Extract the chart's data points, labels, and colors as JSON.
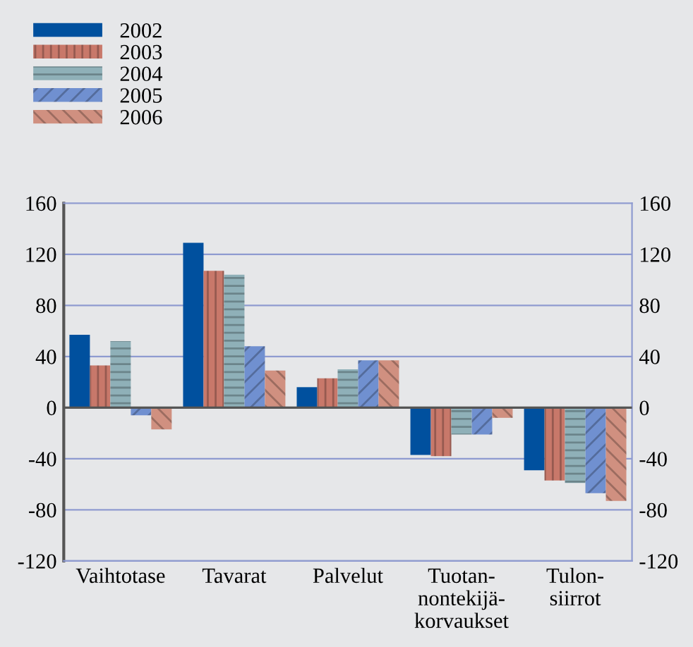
{
  "chart_data": {
    "type": "bar",
    "categories": [
      "Vaihtotase",
      "Tavarat",
      "Palvelut",
      "Tuotan-\nnontekijä-\nkorvaukset",
      "Tulon-\nsiirrot"
    ],
    "series": [
      {
        "name": "2002",
        "color": "#00509e",
        "values": [
          57,
          129,
          16,
          -37,
          -49
        ]
      },
      {
        "name": "2003",
        "color": "#c8786a",
        "values": [
          33,
          107,
          23,
          -38,
          -57
        ]
      },
      {
        "name": "2004",
        "color": "#8fb0b8",
        "values": [
          52,
          104,
          30,
          -21,
          -59
        ]
      },
      {
        "name": "2005",
        "color": "#7090d0",
        "values": [
          -6,
          48,
          37,
          -21,
          -67
        ]
      },
      {
        "name": "2006",
        "color": "#d09080",
        "values": [
          -17,
          29,
          37,
          -8,
          -73
        ]
      }
    ],
    "ylim": [
      -120,
      160
    ],
    "yticks": [
      -120,
      -80,
      -40,
      0,
      40,
      80,
      120,
      160
    ],
    "y2lim": [
      -120,
      160
    ],
    "y2ticks": [
      -120,
      -80,
      -40,
      0,
      40,
      80,
      120,
      160
    ],
    "grid": true,
    "legend": "top left"
  }
}
